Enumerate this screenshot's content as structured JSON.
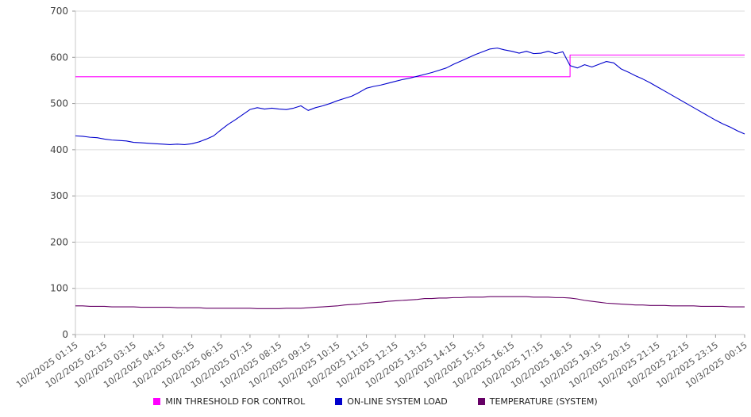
{
  "chart_data": {
    "type": "line",
    "title": "",
    "xlabel": "",
    "ylabel": "",
    "ylim": [
      0,
      700
    ],
    "y_ticks": [
      0,
      100,
      200,
      300,
      400,
      500,
      600,
      700
    ],
    "grid": "horizontal",
    "legend_position": "bottom",
    "x_tick_every": 4,
    "x_tick_labels": [
      "10/2/2025 01:15",
      "10/2/2025 02:15",
      "10/2/2025 03:15",
      "10/2/2025 04:15",
      "10/2/2025 05:15",
      "10/2/2025 06:15",
      "10/2/2025 07:15",
      "10/2/2025 08:15",
      "10/2/2025 09:15",
      "10/2/2025 10:15",
      "10/2/2025 11:15",
      "10/2/2025 12:15",
      "10/2/2025 13:15",
      "10/2/2025 14:15",
      "10/2/2025 15:15",
      "10/2/2025 16:15",
      "10/2/2025 17:15",
      "10/2/2025 18:15",
      "10/2/2025 19:15",
      "10/2/2025 20:15",
      "10/2/2025 21:15",
      "10/2/2025 22:15",
      "10/2/2025 23:15",
      "10/3/2025 00:15"
    ],
    "series": [
      {
        "name": "MIN THRESHOLD FOR CONTROL",
        "color": "#ff00ff",
        "step": true,
        "values": [
          558,
          558,
          558,
          558,
          558,
          558,
          558,
          558,
          558,
          558,
          558,
          558,
          558,
          558,
          558,
          558,
          558,
          558,
          558,
          558,
          558,
          558,
          558,
          558,
          558,
          558,
          558,
          558,
          558,
          558,
          558,
          558,
          558,
          558,
          558,
          558,
          558,
          558,
          558,
          558,
          558,
          558,
          558,
          558,
          558,
          558,
          558,
          558,
          558,
          558,
          558,
          558,
          558,
          558,
          558,
          558,
          558,
          558,
          558,
          558,
          558,
          558,
          558,
          558,
          558,
          558,
          558,
          558,
          605,
          605,
          605,
          605,
          605,
          605,
          605,
          605,
          605,
          605,
          605,
          605,
          605,
          605,
          605,
          605,
          605,
          605,
          605,
          605,
          605,
          605,
          605,
          605,
          605
        ]
      },
      {
        "name": "ON-LINE SYSTEM LOAD",
        "color": "#0000cd",
        "step": false,
        "values": [
          430,
          429,
          427,
          426,
          423,
          421,
          420,
          419,
          416,
          415,
          414,
          413,
          412,
          411,
          412,
          411,
          413,
          417,
          423,
          430,
          443,
          455,
          465,
          476,
          487,
          491,
          488,
          490,
          488,
          487,
          490,
          495,
          485,
          491,
          495,
          500,
          506,
          511,
          516,
          524,
          533,
          537,
          540,
          544,
          548,
          552,
          555,
          559,
          563,
          567,
          572,
          577,
          585,
          592,
          599,
          606,
          612,
          618,
          620,
          616,
          613,
          609,
          613,
          608,
          609,
          613,
          608,
          612,
          582,
          577,
          584,
          579,
          585,
          591,
          588,
          575,
          568,
          560,
          553,
          545,
          536,
          527,
          518,
          509,
          500,
          491,
          482,
          473,
          464,
          456,
          449,
          441,
          434
        ]
      },
      {
        "name": "TEMPERATURE (SYSTEM)",
        "color": "#660066",
        "step": false,
        "values": [
          62,
          62,
          61,
          61,
          61,
          60,
          60,
          60,
          60,
          59,
          59,
          59,
          59,
          59,
          58,
          58,
          58,
          58,
          57,
          57,
          57,
          57,
          57,
          57,
          57,
          56,
          56,
          56,
          56,
          57,
          57,
          57,
          58,
          59,
          60,
          61,
          62,
          64,
          65,
          66,
          68,
          69,
          70,
          72,
          73,
          74,
          75,
          76,
          78,
          78,
          79,
          79,
          80,
          80,
          81,
          81,
          81,
          82,
          82,
          82,
          82,
          82,
          82,
          81,
          81,
          81,
          80,
          80,
          79,
          77,
          74,
          72,
          70,
          68,
          67,
          66,
          65,
          64,
          64,
          63,
          63,
          63,
          62,
          62,
          62,
          62,
          61,
          61,
          61,
          61,
          60,
          60,
          60
        ]
      }
    ]
  }
}
